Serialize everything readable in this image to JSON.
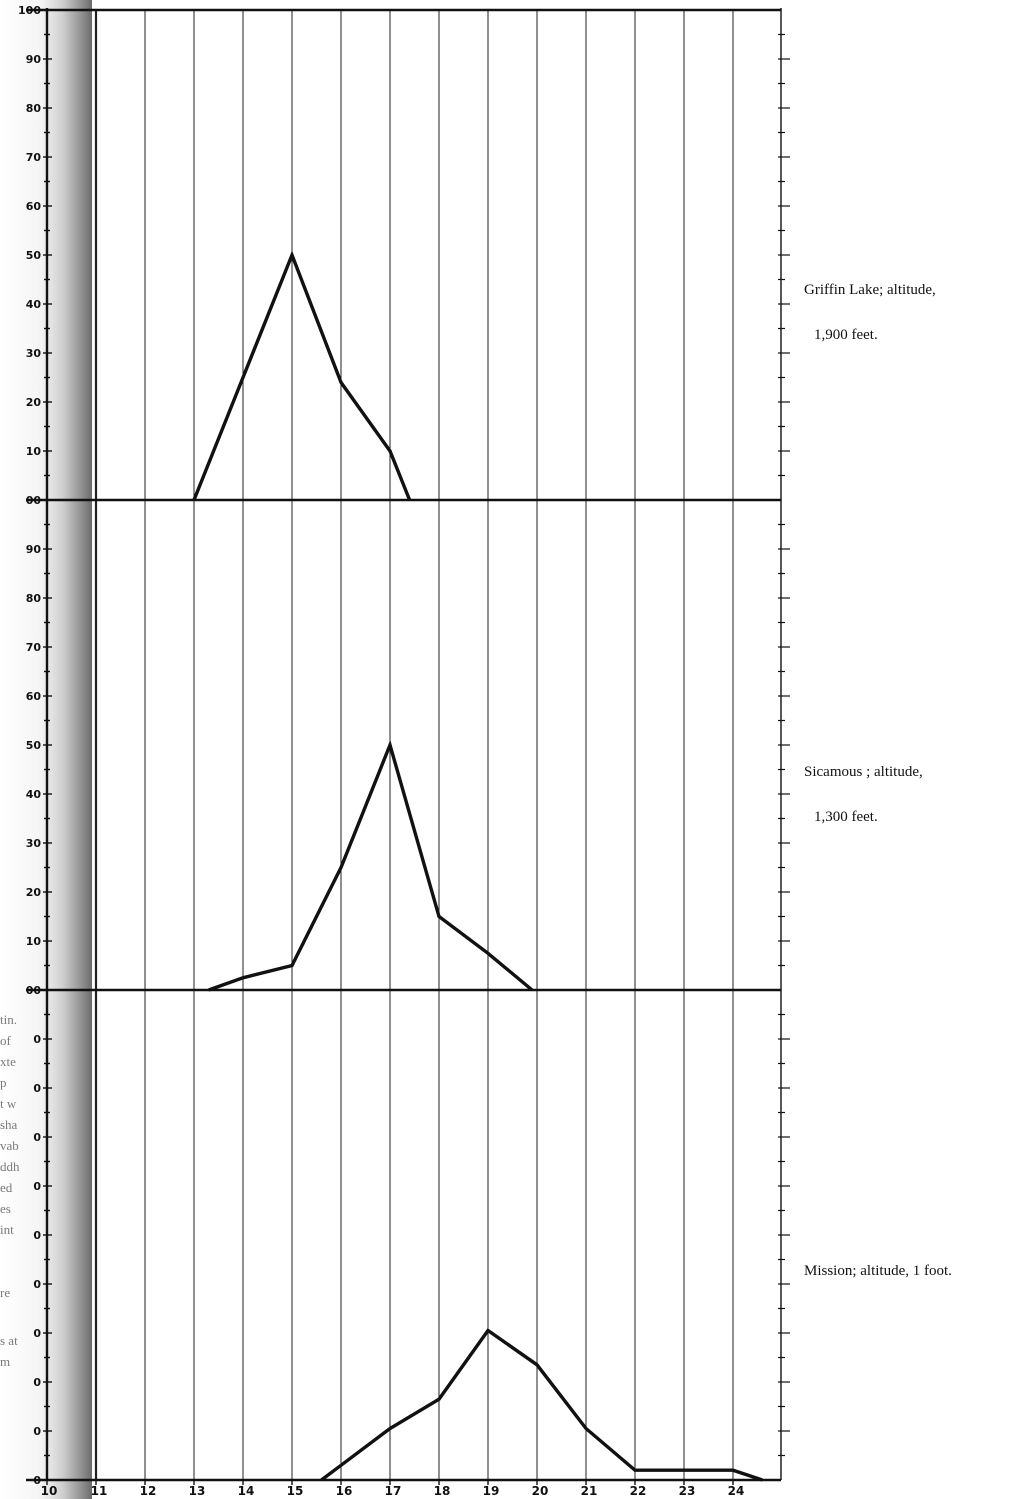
{
  "chart_data": [
    {
      "type": "line",
      "title": "",
      "label_lines": [
        "Griffin Lake; altitude,",
        "1,900 feet."
      ],
      "x": [
        13,
        14,
        15,
        16,
        17,
        17.4
      ],
      "y": [
        0,
        25,
        50,
        24,
        10,
        0
      ],
      "xlim": [
        10,
        25
      ],
      "ylim": [
        0,
        100
      ],
      "y_ticks": [
        "100",
        "90",
        "80",
        "70",
        "60",
        "50",
        "40",
        "30",
        "20",
        "10",
        "00"
      ],
      "grid": true
    },
    {
      "type": "line",
      "title": "",
      "label_lines": [
        "Sicamous ; altitude,",
        "1,300 feet."
      ],
      "x": [
        13.3,
        14,
        15,
        16,
        17,
        18,
        19,
        19.9
      ],
      "y": [
        0,
        2.5,
        5,
        25,
        50,
        15,
        7.5,
        0
      ],
      "xlim": [
        10,
        25
      ],
      "ylim": [
        0,
        100
      ],
      "y_ticks": [
        "90",
        "80",
        "70",
        "60",
        "50",
        "40",
        "30",
        "20",
        "10",
        "00"
      ],
      "grid": true
    },
    {
      "type": "line",
      "title": "",
      "label_lines": [
        "Mission; altitude, 1 foot."
      ],
      "x": [
        15.6,
        16,
        17,
        18,
        19,
        20,
        21,
        22,
        23,
        24,
        24.6
      ],
      "y": [
        0,
        3,
        10.5,
        16.5,
        30.5,
        23.5,
        10.5,
        2,
        2,
        2,
        0
      ],
      "xlim": [
        10,
        25
      ],
      "ylim": [
        0,
        100
      ],
      "y_ticks": [
        "0",
        "0",
        "0",
        "0",
        "0",
        "0",
        "0",
        "0",
        "0",
        "0"
      ],
      "grid": true
    }
  ],
  "x_tick_labels": [
    "10",
    "11",
    "12",
    "13",
    "14",
    "15",
    "16",
    "17",
    "18",
    "19",
    "20",
    "21",
    "22",
    "23",
    "24"
  ],
  "margin_fragments": [
    "tin.",
    "of",
    "xte",
    "p",
    "t w",
    "sha",
    "vab",
    "ddh",
    "ed",
    "es",
    "int",
    "re",
    "s at",
    "m"
  ]
}
